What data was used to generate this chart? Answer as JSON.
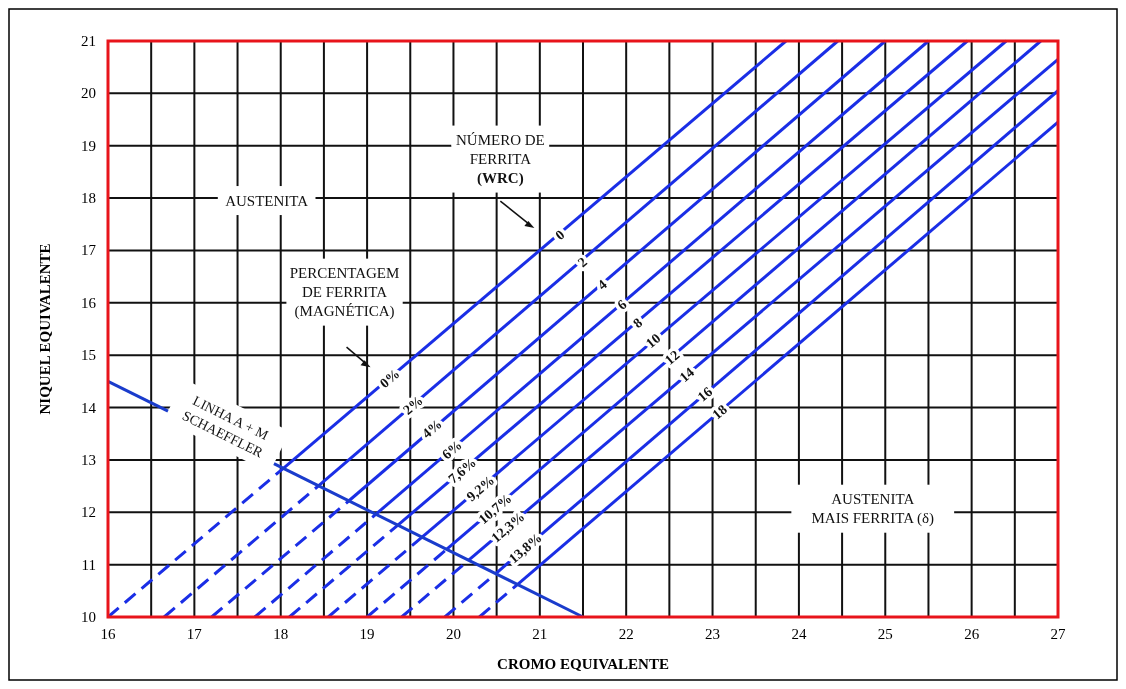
{
  "chart_data": {
    "type": "line",
    "xlabel": "CROMO EQUIVALENTE",
    "ylabel": "NIQUEL EQUIVALENTE",
    "xlim": [
      16,
      27
    ],
    "ylim": [
      10,
      21
    ],
    "xticks": [
      16,
      {
        "value": 16.5,
        "label": null
      },
      17,
      {
        "value": 17.5,
        "label": null
      },
      18,
      {
        "value": 18.5,
        "label": null
      },
      19,
      {
        "value": 19.5,
        "label": null
      },
      20,
      {
        "value": 20.5,
        "label": null
      },
      21,
      {
        "value": 21.5,
        "label": null
      },
      22,
      {
        "value": 22.5,
        "label": null
      },
      23,
      {
        "value": 23.5,
        "label": null
      },
      24,
      {
        "value": 24.5,
        "label": null
      },
      25,
      {
        "value": 25.5,
        "label": null
      },
      26,
      {
        "value": 26.5,
        "label": null
      },
      27
    ],
    "yticks": [
      10,
      11,
      12,
      13,
      14,
      15,
      16,
      17,
      18,
      19,
      20,
      21
    ],
    "grid": true,
    "series": [
      {
        "color": "#1a2ee6",
        "line_style": "dashed",
        "x": [
          16,
          18.03
        ],
        "values": [
          10,
          12.84
        ]
      },
      {
        "color": "#1a2ee6",
        "line_style": "solid",
        "x": [
          18.03,
          23.85
        ],
        "values": [
          12.84,
          21
        ]
      },
      {
        "color": "#1a2ee6",
        "line_style": "dashed",
        "x": [
          16.65,
          18.44
        ],
        "values": [
          10,
          12.51
        ]
      },
      {
        "color": "#1a2ee6",
        "line_style": "solid",
        "x": [
          18.44,
          24.45
        ],
        "values": [
          12.51,
          21
        ]
      },
      {
        "color": "#1a2ee6",
        "line_style": "dashed",
        "x": [
          17.2,
          18.79
        ],
        "values": [
          10,
          12.22
        ]
      },
      {
        "color": "#1a2ee6",
        "line_style": "solid",
        "x": [
          18.79,
          25
        ],
        "values": [
          12.22,
          21
        ]
      },
      {
        "color": "#1a2ee6",
        "line_style": "dashed",
        "x": [
          17.7,
          19.1
        ],
        "values": [
          10,
          11.96
        ]
      },
      {
        "color": "#1a2ee6",
        "line_style": "solid",
        "x": [
          19.1,
          25.5
        ],
        "values": [
          11.96,
          21
        ]
      },
      {
        "color": "#1a2ee6",
        "line_style": "dashed",
        "x": [
          18.1,
          19.36
        ],
        "values": [
          10,
          11.76
        ]
      },
      {
        "color": "#1a2ee6",
        "line_style": "solid",
        "x": [
          19.36,
          25.95
        ],
        "values": [
          11.76,
          21
        ]
      },
      {
        "color": "#1a2ee6",
        "line_style": "dashed",
        "x": [
          18.55,
          19.64
        ],
        "values": [
          10,
          11.53
        ]
      },
      {
        "color": "#1a2ee6",
        "line_style": "solid",
        "x": [
          19.64,
          26.4
        ],
        "values": [
          11.53,
          21
        ]
      },
      {
        "color": "#1a2ee6",
        "line_style": "dashed",
        "x": [
          19,
          19.92
        ],
        "values": [
          10,
          11.29
        ]
      },
      {
        "color": "#1a2ee6",
        "line_style": "solid",
        "x": [
          19.92,
          26.8
        ],
        "values": [
          11.29,
          21
        ]
      },
      {
        "color": "#1a2ee6",
        "line_style": "dashed",
        "x": [
          19.4,
          20.18
        ],
        "values": [
          10,
          11.09
        ]
      },
      {
        "color": "#1a2ee6",
        "line_style": "solid",
        "x": [
          20.18,
          27
        ],
        "values": [
          11.09,
          20.65
        ]
      },
      {
        "color": "#1a2ee6",
        "line_style": "dashed",
        "x": [
          19.9,
          20.49
        ],
        "values": [
          10,
          10.83
        ]
      },
      {
        "color": "#1a2ee6",
        "line_style": "solid",
        "x": [
          20.49,
          27
        ],
        "values": [
          10.83,
          20.05
        ]
      },
      {
        "color": "#1a2ee6",
        "line_style": "dashed",
        "x": [
          20.3,
          20.74
        ],
        "values": [
          10,
          10.62
        ]
      },
      {
        "color": "#1a2ee6",
        "line_style": "solid",
        "x": [
          20.74,
          27
        ],
        "values": [
          10.62,
          19.45
        ]
      },
      {
        "color": "#1a3ccc",
        "line_style": "solid",
        "x": [
          16,
          21.5
        ],
        "values": [
          14.5,
          10
        ]
      }
    ],
    "annotations": [
      {
        "text": "0",
        "x": 21.23,
        "y": 17.3
      },
      {
        "text": "2",
        "x": 21.49,
        "y": 16.78
      },
      {
        "text": "4",
        "x": 21.72,
        "y": 16.35
      },
      {
        "text": "6",
        "x": 21.95,
        "y": 15.97
      },
      {
        "text": "8",
        "x": 22.13,
        "y": 15.62
      },
      {
        "text": "10",
        "x": 22.31,
        "y": 15.28
      },
      {
        "text": "12",
        "x": 22.53,
        "y": 14.96
      },
      {
        "text": "14",
        "x": 22.7,
        "y": 14.63
      },
      {
        "text": "16",
        "x": 22.91,
        "y": 14.26
      },
      {
        "text": "18",
        "x": 23.08,
        "y": 13.92
      },
      {
        "text": "0%",
        "x": 19.26,
        "y": 14.56
      },
      {
        "text": "2%",
        "x": 19.53,
        "y": 14.05
      },
      {
        "text": "4%",
        "x": 19.75,
        "y": 13.6
      },
      {
        "text": "6%",
        "x": 19.98,
        "y": 13.2
      },
      {
        "text": "7,6%",
        "x": 20.1,
        "y": 12.8
      },
      {
        "text": "9,2%",
        "x": 20.31,
        "y": 12.46
      },
      {
        "text": "10,7%",
        "x": 20.48,
        "y": 12.07
      },
      {
        "text": "12,3%",
        "x": 20.63,
        "y": 11.72
      },
      {
        "text": "13,8%",
        "x": 20.83,
        "y": 11.32
      },
      "AUSTENITA",
      "NÚMERO DE\nFERRITA\n(WRC)",
      "PERCENTAGEM\nDE FERRITA\n(MAGNÉTICA)",
      "LINHA  A + M\nSCHAEFFLER",
      "AUSTENITA\nMAIS FERRITA (δ)"
    ]
  }
}
